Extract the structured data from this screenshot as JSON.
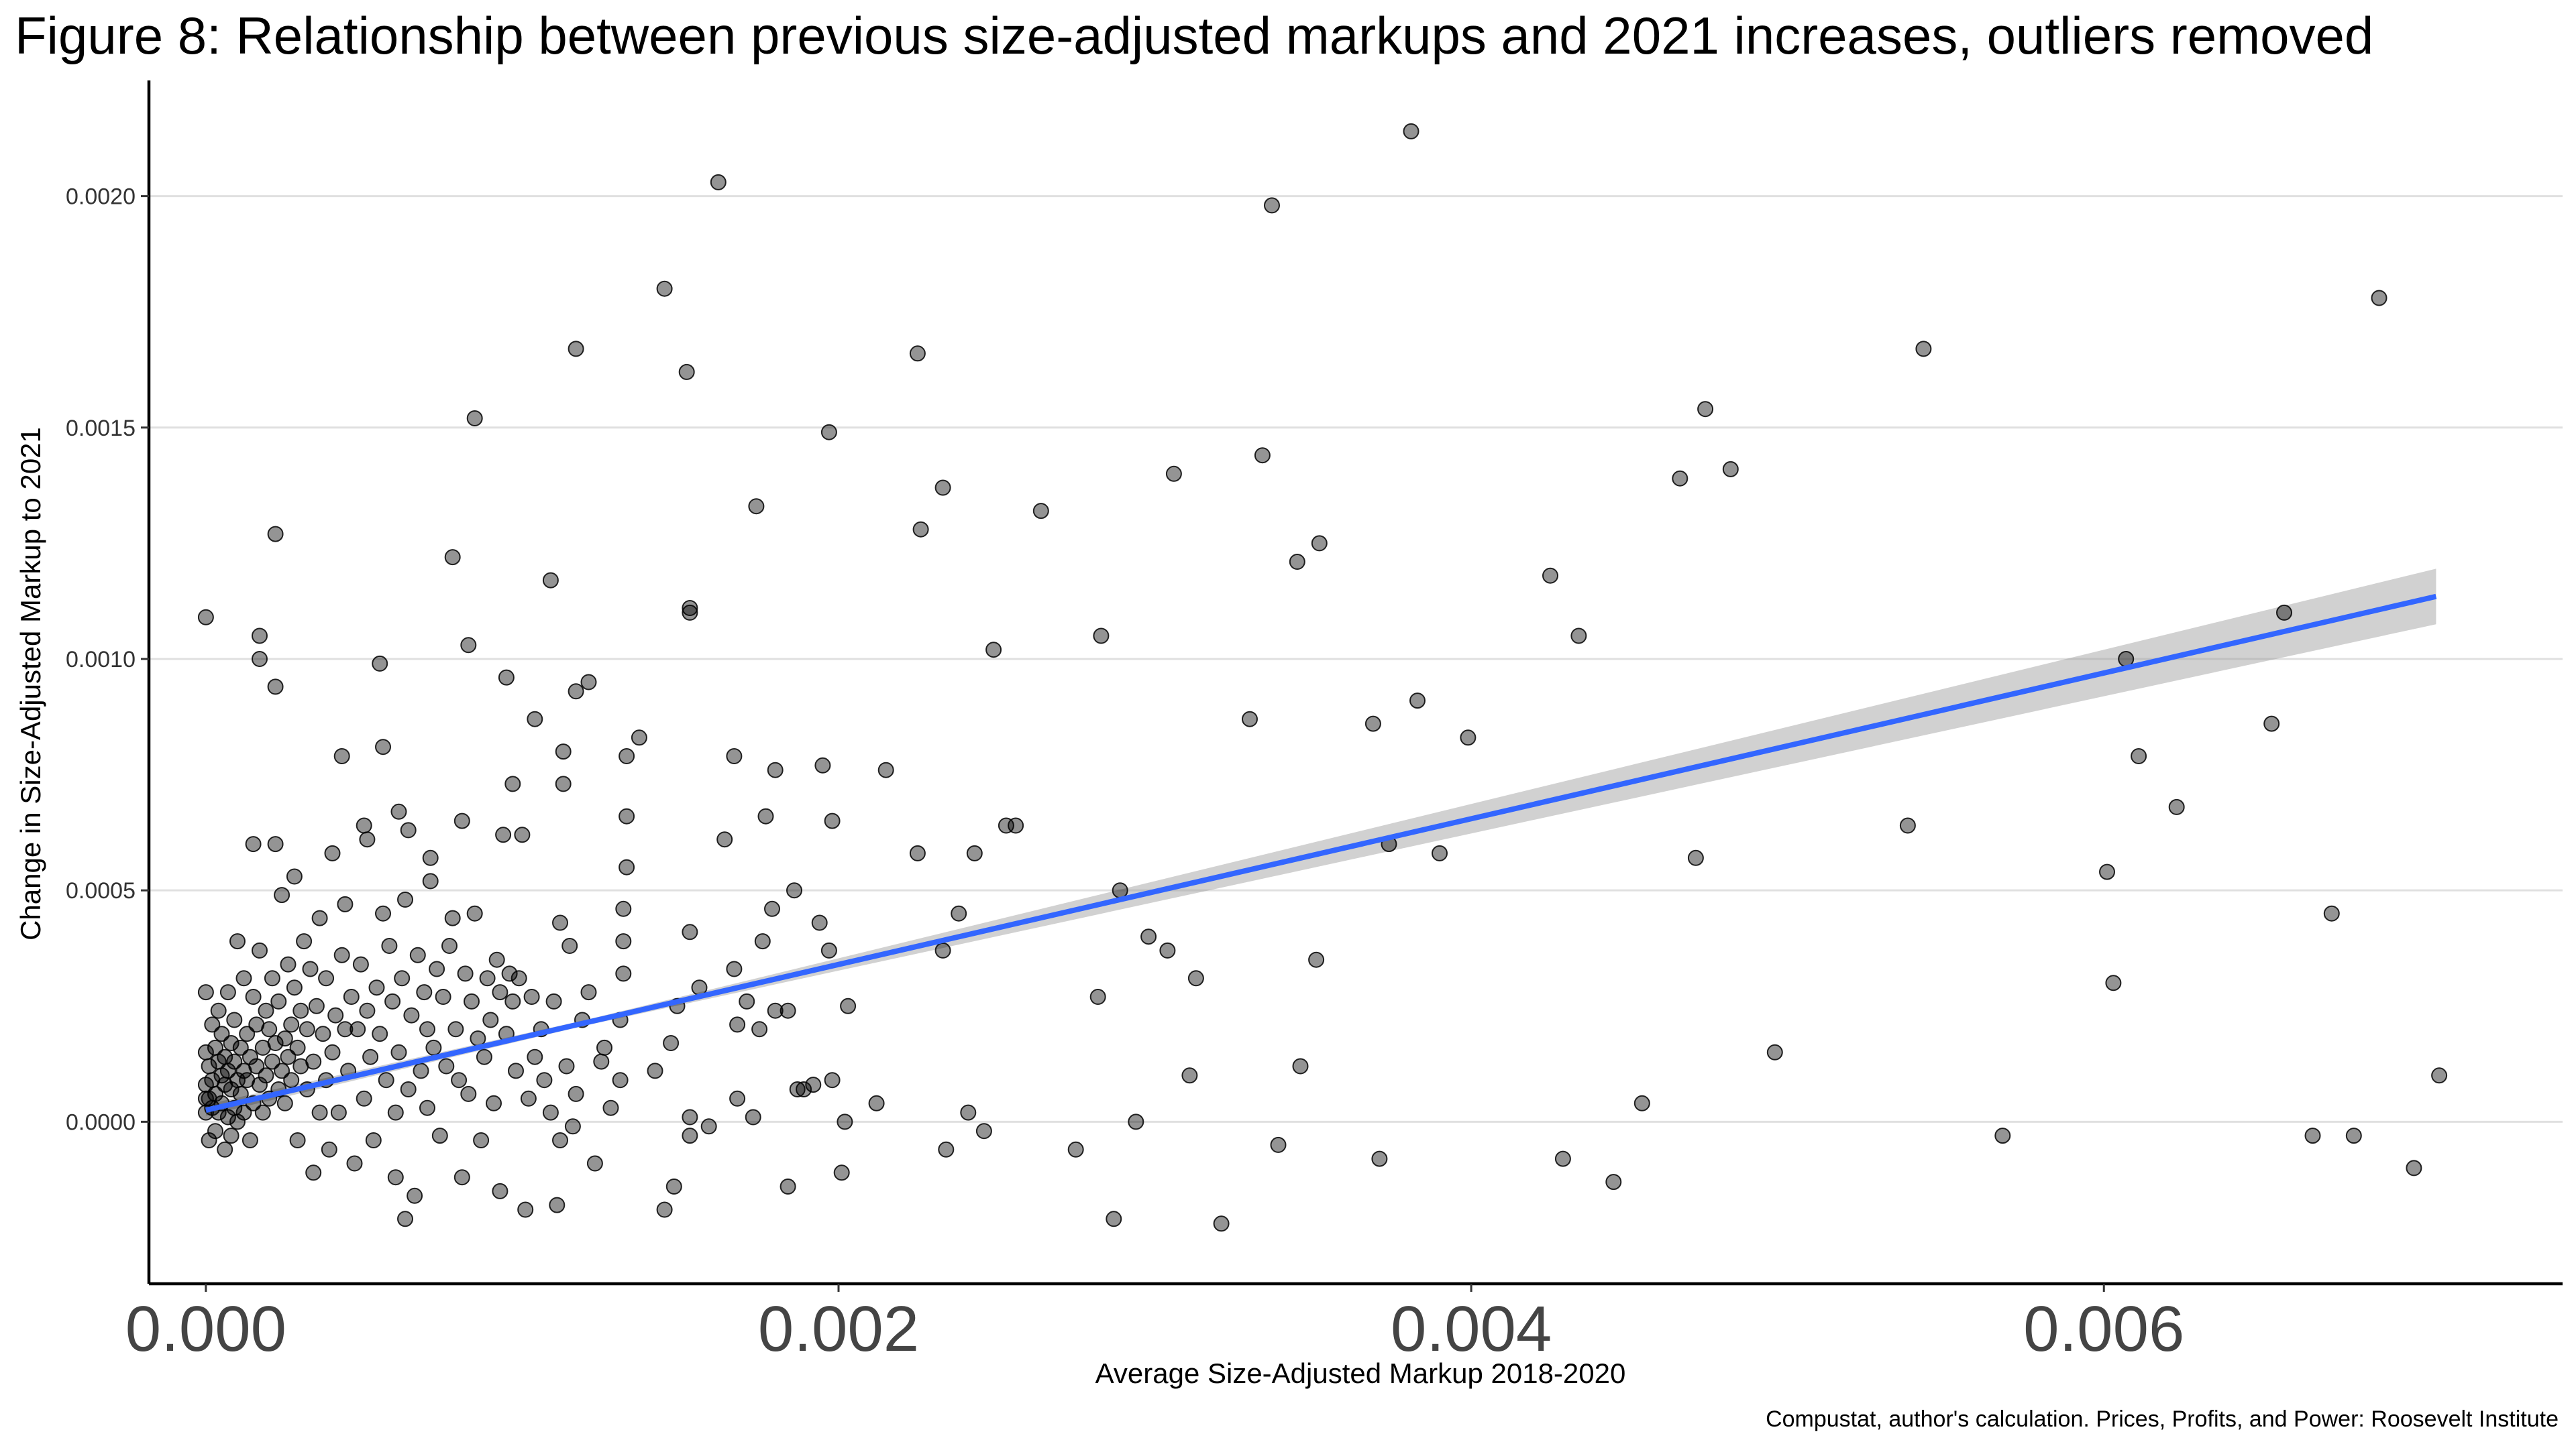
{
  "page": {
    "title": "Figure 8: Relationship between previous size-adjusted markups and 2021 increases, outliers removed",
    "caption": "Compustat, author's calculation. Prices, Profits, and Power: Roosevelt Institute"
  },
  "chart_data": {
    "type": "scatter",
    "title": "Figure 8: Relationship between previous size-adjusted markups and 2021 increases, outliers removed",
    "xlabel": "Average Size-Adjusted Markup 2018-2020",
    "ylabel": "Change in Size-Adjusted Markup to 2021",
    "caption": "Compustat, author's calculation. Prices, Profits, and Power: Roosevelt Institute",
    "xlim": [
      -0.00018,
      0.00745
    ],
    "ylim": [
      -0.00035,
      0.00225
    ],
    "x_ticks": [
      {
        "value": 0.0,
        "label": "0.000"
      },
      {
        "value": 0.002,
        "label": "0.002"
      },
      {
        "value": 0.004,
        "label": "0.004"
      },
      {
        "value": 0.006,
        "label": "0.006"
      }
    ],
    "y_ticks": [
      {
        "value": 0.0,
        "label": "0.0000"
      },
      {
        "value": 0.0005,
        "label": "0.0005"
      },
      {
        "value": 0.001,
        "label": "0.0010"
      },
      {
        "value": 0.0015,
        "label": "0.0015"
      },
      {
        "value": 0.002,
        "label": "0.0020"
      }
    ],
    "grid": "horizontal major gridlines",
    "point_color": "#000000",
    "point_opacity": 0.42,
    "fit_line": {
      "method": "linear regression",
      "color": "#3366ff",
      "x": [
        0.0,
        0.00705
      ],
      "y": [
        2.5e-05,
        0.001135
      ],
      "ci_band_color": "#999999",
      "ci_halfwidth_x0": 1.2e-05,
      "ci_halfwidth_x1": 6e-05
    },
    "points": [
      [
        0.0,
        0.00109
      ],
      [
        0.00017,
        0.00105
      ],
      [
        0.00017,
        0.001
      ],
      [
        0.00022,
        0.00127
      ],
      [
        0.00022,
        0.00094
      ],
      [
        0.00043,
        0.00079
      ],
      [
        0.00055,
        0.00099
      ],
      [
        0.00056,
        0.00081
      ],
      [
        0.0005,
        0.00064
      ],
      [
        0.00061,
        0.00067
      ],
      [
        0.00064,
        0.00063
      ],
      [
        0.00071,
        0.00057
      ],
      [
        0.00083,
        0.00103
      ],
      [
        0.00085,
        0.00152
      ],
      [
        0.00078,
        0.00122
      ],
      [
        0.00095,
        0.00096
      ],
      [
        0.00104,
        0.00087
      ],
      [
        0.00109,
        0.00117
      ],
      [
        0.00113,
        0.0008
      ],
      [
        0.00117,
        0.00167
      ],
      [
        0.00117,
        0.00093
      ],
      [
        0.00121,
        0.00095
      ],
      [
        0.00133,
        0.00079
      ],
      [
        0.00137,
        0.00083
      ],
      [
        0.00145,
        0.0018
      ],
      [
        0.00152,
        0.00162
      ],
      [
        0.00153,
        0.00111
      ],
      [
        0.00153,
        0.0011
      ],
      [
        0.00162,
        0.00203
      ],
      [
        0.00167,
        0.00079
      ],
      [
        0.00174,
        0.00133
      ],
      [
        0.0018,
        0.00076
      ],
      [
        0.00195,
        0.00077
      ],
      [
        0.00197,
        0.00149
      ],
      [
        0.00198,
        0.00065
      ],
      [
        0.00215,
        0.00076
      ],
      [
        0.00225,
        0.00166
      ],
      [
        0.00226,
        0.00128
      ],
      [
        0.00233,
        0.00137
      ],
      [
        0.00249,
        0.00102
      ],
      [
        0.00264,
        0.00132
      ],
      [
        0.00283,
        0.00105
      ],
      [
        0.00306,
        0.0014
      ],
      [
        0.0033,
        0.00087
      ],
      [
        0.00334,
        0.00144
      ],
      [
        0.00337,
        0.00198
      ],
      [
        0.00345,
        0.00121
      ],
      [
        0.00352,
        0.00125
      ],
      [
        0.00381,
        0.00214
      ],
      [
        0.00369,
        0.00086
      ],
      [
        0.00383,
        0.00091
      ],
      [
        0.00399,
        0.00083
      ],
      [
        0.00425,
        0.00118
      ],
      [
        0.00434,
        0.00105
      ],
      [
        0.00466,
        0.00139
      ],
      [
        0.00474,
        0.00154
      ],
      [
        0.00482,
        0.00141
      ],
      [
        0.00543,
        0.00167
      ],
      [
        0.00538,
        0.00064
      ],
      [
        0.00601,
        0.00054
      ],
      [
        0.00607,
        0.001
      ],
      [
        0.00611,
        0.00079
      ],
      [
        0.00623,
        0.00068
      ],
      [
        0.00653,
        0.00086
      ],
      [
        0.00657,
        0.0011
      ],
      [
        0.00687,
        0.00178
      ],
      [
        0.00672,
        0.00045
      ],
      [
        0.00603,
        0.0003
      ],
      [
        0.00706,
        0.0001
      ],
      [
        0.00568,
        -3e-05
      ],
      [
        0.00666,
        -3e-05
      ],
      [
        0.00679,
        -3e-05
      ],
      [
        0.00698,
        -0.0001
      ],
      [
        0.00496,
        0.00015
      ],
      [
        0.00454,
        4e-05
      ],
      [
        0.00445,
        -0.00013
      ],
      [
        0.00429,
        -8e-05
      ],
      [
        0.00471,
        0.00057
      ],
      [
        0.0039,
        0.00058
      ],
      [
        0.00374,
        0.0006
      ],
      [
        0.00371,
        -8e-05
      ],
      [
        0.00351,
        0.00035
      ],
      [
        0.00346,
        0.00012
      ],
      [
        0.00339,
        -5e-05
      ],
      [
        0.00321,
        -0.00022
      ],
      [
        0.00313,
        0.00031
      ],
      [
        0.00311,
        0.0001
      ],
      [
        0.00304,
        0.00037
      ],
      [
        0.00298,
        0.0004
      ],
      [
        0.00294,
        0.0
      ],
      [
        0.00289,
        0.0005
      ],
      [
        0.00287,
        -0.00021
      ],
      [
        0.00282,
        0.00027
      ],
      [
        0.00275,
        -6e-05
      ],
      [
        0.00256,
        0.00064
      ],
      [
        0.00253,
        0.00064
      ],
      [
        0.00243,
        0.00058
      ],
      [
        0.00238,
        0.00045
      ],
      [
        0.00225,
        0.00058
      ],
      [
        0.00233,
        0.00037
      ],
      [
        0.00241,
        2e-05
      ],
      [
        0.00246,
        -2e-05
      ],
      [
        0.00234,
        -6e-05
      ],
      [
        0.00212,
        4e-05
      ],
      [
        0.00203,
        0.00025
      ],
      [
        0.00201,
        -0.00011
      ],
      [
        0.00202,
        0.0
      ],
      [
        0.00197,
        0.00037
      ],
      [
        0.00198,
        9e-05
      ],
      [
        0.00194,
        0.00043
      ],
      [
        0.00192,
        8e-05
      ],
      [
        0.00189,
        7e-05
      ],
      [
        0.00187,
        7e-05
      ],
      [
        0.00186,
        0.0005
      ],
      [
        0.00184,
        0.00024
      ],
      [
        0.00184,
        -0.00014
      ],
      [
        0.0018,
        0.00024
      ],
      [
        0.00179,
        0.00046
      ],
      [
        0.00177,
        0.00066
      ],
      [
        0.00176,
        0.00039
      ],
      [
        0.00175,
        0.0002
      ],
      [
        0.00173,
        1e-05
      ],
      [
        0.00171,
        0.00026
      ],
      [
        0.00168,
        0.00021
      ],
      [
        0.00168,
        5e-05
      ],
      [
        0.00167,
        0.00033
      ],
      [
        0.00164,
        0.00061
      ],
      [
        0.00159,
        -1e-05
      ],
      [
        0.00156,
        0.00029
      ],
      [
        0.00153,
        0.00041
      ],
      [
        0.00153,
        1e-05
      ],
      [
        0.00153,
        -3e-05
      ],
      [
        0.00149,
        0.00025
      ],
      [
        0.00147,
        0.00017
      ],
      [
        0.00145,
        -0.00019
      ],
      [
        0.00142,
        0.00011
      ],
      [
        0.00148,
        -0.00014
      ],
      [
        0.00133,
        0.00066
      ],
      [
        0.00133,
        0.00055
      ],
      [
        0.00132,
        0.00046
      ],
      [
        0.00132,
        0.00039
      ],
      [
        0.00132,
        0.00032
      ],
      [
        0.00131,
        0.00022
      ],
      [
        0.00131,
        9e-05
      ],
      [
        0.00128,
        3e-05
      ],
      [
        0.00126,
        0.00016
      ],
      [
        0.00125,
        0.00013
      ],
      [
        0.00123,
        -9e-05
      ],
      [
        0.00121,
        0.00028
      ],
      [
        0.00119,
        0.00022
      ],
      [
        0.00117,
        6e-05
      ],
      [
        0.00116,
        -1e-05
      ],
      [
        0.00115,
        0.00038
      ],
      [
        0.00114,
        0.00012
      ],
      [
        0.00113,
        0.00073
      ],
      [
        0.00112,
        0.00043
      ],
      [
        0.00112,
        -4e-05
      ],
      [
        0.00111,
        -0.00018
      ],
      [
        0.0011,
        0.00026
      ],
      [
        0.00109,
        2e-05
      ],
      [
        0.00107,
        9e-05
      ],
      [
        0.00106,
        0.0002
      ],
      [
        0.00104,
        0.00014
      ],
      [
        0.00103,
        0.00027
      ],
      [
        0.00102,
        5e-05
      ],
      [
        0.00101,
        -0.00019
      ],
      [
        0.001,
        0.00062
      ],
      [
        0.00099,
        0.00031
      ],
      [
        0.00098,
        0.00011
      ],
      [
        0.00097,
        0.00073
      ],
      [
        0.00097,
        0.00026
      ],
      [
        0.00096,
        0.00032
      ],
      [
        0.00095,
        0.00019
      ],
      [
        0.00094,
        0.00062
      ],
      [
        0.00093,
        0.00028
      ],
      [
        0.00093,
        -0.00015
      ],
      [
        0.00092,
        0.00035
      ],
      [
        0.00091,
        4e-05
      ],
      [
        0.0009,
        0.00022
      ],
      [
        0.00089,
        0.00031
      ],
      [
        0.00088,
        0.00014
      ],
      [
        0.00087,
        -4e-05
      ],
      [
        0.00086,
        0.00018
      ],
      [
        0.00085,
        0.00045
      ],
      [
        0.00084,
        0.00026
      ],
      [
        0.00083,
        6e-05
      ],
      [
        0.00082,
        0.00032
      ],
      [
        0.00081,
        0.00065
      ],
      [
        0.00081,
        -0.00012
      ],
      [
        0.0008,
        9e-05
      ],
      [
        0.00079,
        0.0002
      ],
      [
        0.00078,
        0.00044
      ],
      [
        0.00077,
        0.00038
      ],
      [
        0.00076,
        0.00012
      ],
      [
        0.00075,
        0.00027
      ],
      [
        0.00074,
        -3e-05
      ],
      [
        0.00073,
        0.00033
      ],
      [
        0.00072,
        0.00016
      ],
      [
        0.00071,
        0.00052
      ],
      [
        0.0007,
        0.0002
      ],
      [
        0.0007,
        3e-05
      ],
      [
        0.00069,
        0.00028
      ],
      [
        0.00068,
        0.00011
      ],
      [
        0.00067,
        0.00036
      ],
      [
        0.00066,
        -0.00016
      ],
      [
        0.00065,
        0.00023
      ],
      [
        0.00064,
        7e-05
      ],
      [
        0.00063,
        0.00048
      ],
      [
        0.00063,
        -0.00021
      ],
      [
        0.00062,
        0.00031
      ],
      [
        0.00061,
        0.00015
      ],
      [
        0.0006,
        2e-05
      ],
      [
        0.0006,
        -0.00012
      ],
      [
        0.00059,
        0.00026
      ],
      [
        0.00058,
        0.00038
      ],
      [
        0.00057,
        9e-05
      ],
      [
        0.00056,
        0.00045
      ],
      [
        0.00055,
        0.00019
      ],
      [
        0.00054,
        0.00029
      ],
      [
        0.00053,
        -4e-05
      ],
      [
        0.00052,
        0.00014
      ],
      [
        0.00051,
        0.00024
      ],
      [
        0.00051,
        0.00061
      ],
      [
        0.0005,
        5e-05
      ],
      [
        0.00049,
        0.00034
      ],
      [
        0.00048,
        0.0002
      ],
      [
        0.00047,
        -9e-05
      ],
      [
        0.00046,
        0.00027
      ],
      [
        0.00045,
        0.00011
      ],
      [
        0.00044,
        0.00047
      ],
      [
        0.00044,
        0.0002
      ],
      [
        0.00043,
        0.00036
      ],
      [
        0.00042,
        2e-05
      ],
      [
        0.00041,
        0.00023
      ],
      [
        0.0004,
        0.00015
      ],
      [
        0.0004,
        0.00058
      ],
      [
        0.00039,
        -6e-05
      ],
      [
        0.00038,
        0.00031
      ],
      [
        0.00038,
        9e-05
      ],
      [
        0.00037,
        0.00019
      ],
      [
        0.00036,
        0.00044
      ],
      [
        0.00036,
        2e-05
      ],
      [
        0.00035,
        0.00025
      ],
      [
        0.00034,
        0.00013
      ],
      [
        0.00034,
        -0.00011
      ],
      [
        0.00033,
        0.00033
      ],
      [
        0.00032,
        7e-05
      ],
      [
        0.00032,
        0.0002
      ],
      [
        0.00031,
        0.00039
      ],
      [
        0.0003,
        0.00012
      ],
      [
        0.0003,
        0.00024
      ],
      [
        0.00029,
        -4e-05
      ],
      [
        0.00029,
        0.00016
      ],
      [
        0.00028,
        0.00053
      ],
      [
        0.00028,
        0.00029
      ],
      [
        0.00027,
        9e-05
      ],
      [
        0.00027,
        0.00021
      ],
      [
        0.00026,
        0.00014
      ],
      [
        0.00026,
        0.00034
      ],
      [
        0.00025,
        4e-05
      ],
      [
        0.00025,
        0.00018
      ],
      [
        0.00024,
        0.00049
      ],
      [
        0.00024,
        0.00011
      ],
      [
        0.00023,
        0.00026
      ],
      [
        0.00023,
        7e-05
      ],
      [
        0.00022,
        0.00017
      ],
      [
        0.00022,
        0.0006
      ],
      [
        0.00021,
        0.00013
      ],
      [
        0.00021,
        0.00031
      ],
      [
        0.0002,
        5e-05
      ],
      [
        0.0002,
        0.0002
      ],
      [
        0.00019,
        0.0001
      ],
      [
        0.00019,
        0.00024
      ],
      [
        0.00018,
        2e-05
      ],
      [
        0.00018,
        0.00016
      ],
      [
        0.00017,
        0.00037
      ],
      [
        0.00017,
        8e-05
      ],
      [
        0.00016,
        0.00021
      ],
      [
        0.00016,
        0.00012
      ],
      [
        0.00015,
        4e-05
      ],
      [
        0.00015,
        0.00027
      ],
      [
        0.00015,
        0.0006
      ],
      [
        0.00014,
        0.00014
      ],
      [
        0.00014,
        -4e-05
      ],
      [
        0.00013,
        9e-05
      ],
      [
        0.00013,
        0.00019
      ],
      [
        0.00012,
        2e-05
      ],
      [
        0.00012,
        0.00031
      ],
      [
        0.00012,
        0.00011
      ],
      [
        0.00011,
        6e-05
      ],
      [
        0.00011,
        0.00016
      ],
      [
        0.0001,
        0.0
      ],
      [
        0.0001,
        0.00039
      ],
      [
        0.0001,
        9e-05
      ],
      [
        9e-05,
        0.00013
      ],
      [
        9e-05,
        3e-05
      ],
      [
        9e-05,
        0.00022
      ],
      [
        8e-05,
        7e-05
      ],
      [
        8e-05,
        -3e-05
      ],
      [
        8e-05,
        0.00017
      ],
      [
        7e-05,
        0.00011
      ],
      [
        7e-05,
        1e-05
      ],
      [
        7e-05,
        0.00028
      ],
      [
        6e-05,
        8e-05
      ],
      [
        6e-05,
        0.00014
      ],
      [
        6e-05,
        -6e-05
      ],
      [
        5e-05,
        4e-05
      ],
      [
        5e-05,
        0.00019
      ],
      [
        5e-05,
        0.0001
      ],
      [
        4e-05,
        2e-05
      ],
      [
        4e-05,
        0.00013
      ],
      [
        4e-05,
        0.00024
      ],
      [
        3e-05,
        6e-05
      ],
      [
        3e-05,
        -2e-05
      ],
      [
        3e-05,
        0.00016
      ],
      [
        2e-05,
        9e-05
      ],
      [
        2e-05,
        3e-05
      ],
      [
        2e-05,
        0.00021
      ],
      [
        1e-05,
        5e-05
      ],
      [
        1e-05,
        0.00012
      ],
      [
        1e-05,
        -4e-05
      ],
      [
        0.0,
        8e-05
      ],
      [
        0.0,
        2e-05
      ],
      [
        0.0,
        0.00015
      ],
      [
        0.0,
        0.00028
      ],
      [
        0.0,
        5e-05
      ]
    ]
  }
}
